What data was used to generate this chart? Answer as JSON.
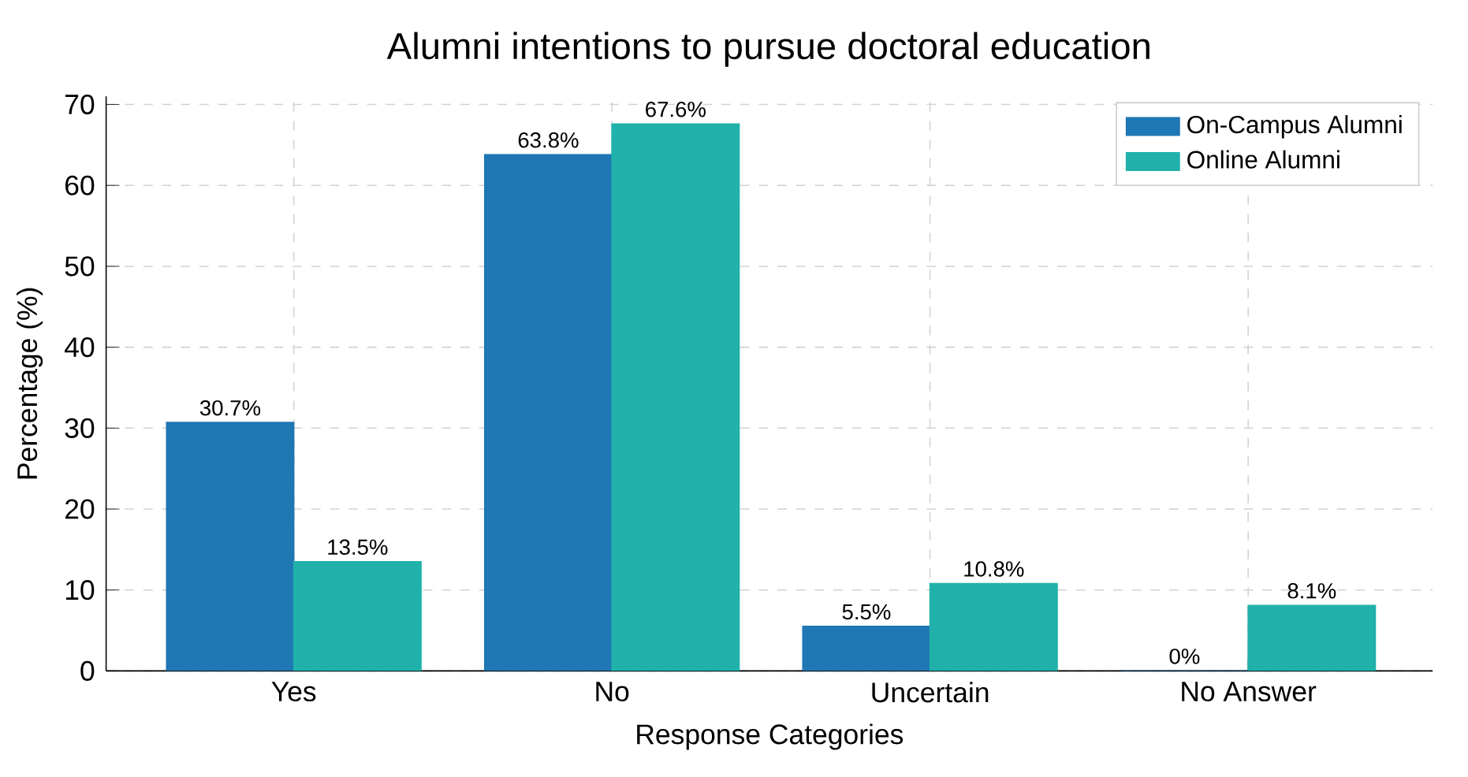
{
  "chart_data": {
    "type": "bar",
    "title": "Alumni intentions to pursue doctoral education",
    "xlabel": "Response Categories",
    "ylabel": "Percentage (%)",
    "categories": [
      "Yes",
      "No",
      "Uncertain",
      "No Answer"
    ],
    "series": [
      {
        "name": "On-Campus Alumni",
        "color": "#1f77b4",
        "values": [
          30.7,
          63.8,
          5.5,
          0
        ],
        "value_labels": [
          "30.7%",
          "63.8%",
          "5.5%",
          "0%"
        ]
      },
      {
        "name": "Online Alumni",
        "color": "#20b2aa",
        "values": [
          13.5,
          67.6,
          10.8,
          8.1
        ],
        "value_labels": [
          "13.5%",
          "67.6%",
          "10.8%",
          "8.1%"
        ]
      }
    ],
    "ylim": [
      0,
      71
    ],
    "yticks": [
      0,
      10,
      20,
      30,
      40,
      50,
      60,
      70
    ],
    "grid": true,
    "legend": "top right"
  }
}
